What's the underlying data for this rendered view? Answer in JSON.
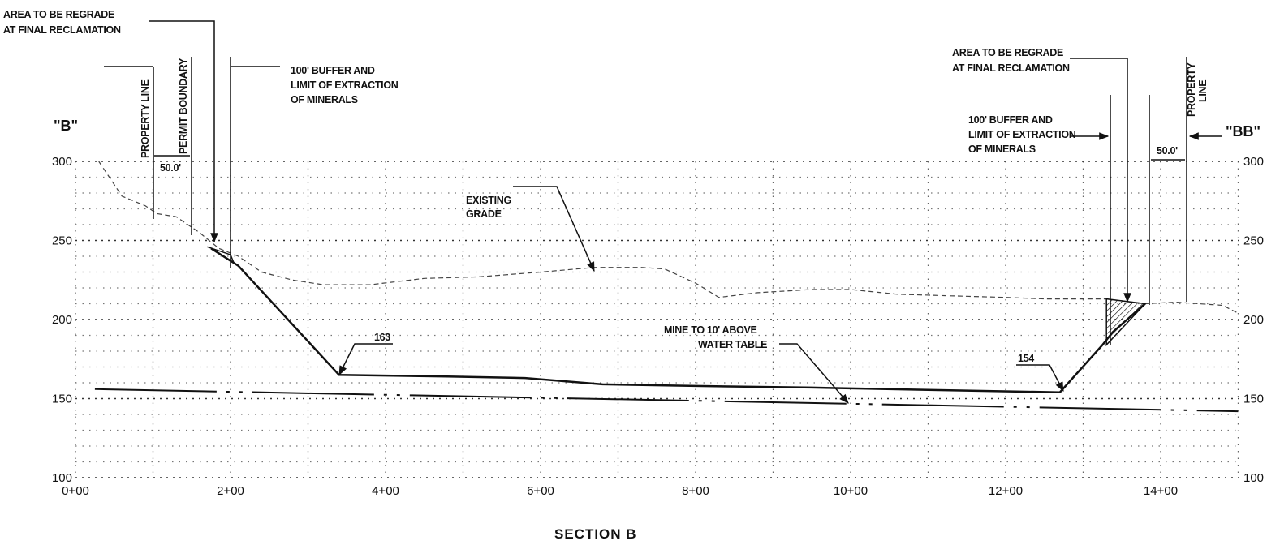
{
  "section_title": "SECTION B",
  "left_marker": "\"B\"",
  "right_marker": "\"BB\"",
  "y_axis": {
    "ticks": [
      "100",
      "150",
      "200",
      "250",
      "300"
    ],
    "values": [
      100,
      150,
      200,
      250,
      300
    ]
  },
  "x_axis": {
    "ticks": [
      "0+00",
      "2+00",
      "4+00",
      "6+00",
      "8+00",
      "10+00",
      "12+00",
      "14+00"
    ],
    "values": [
      0,
      2,
      4,
      6,
      8,
      10,
      12,
      14
    ]
  },
  "labels": {
    "left_regrade": [
      "AREA TO BE REGRADE",
      "AT FINAL RECLAMATION"
    ],
    "left_property_line": "PROPERTY LINE",
    "left_permit_boundary": "PERMIT BOUNDARY",
    "left_buffer": [
      "100' BUFFER AND",
      "LIMIT OF EXTRACTION",
      "OF MINERALS"
    ],
    "left_dimension": "50.0'",
    "existing_grade": [
      "EXISTING",
      "GRADE"
    ],
    "pit_floor_left": "163",
    "mine_note": [
      "MINE TO 10' ABOVE",
      "WATER TABLE"
    ],
    "pit_floor_right": "154",
    "right_regrade": [
      "AREA TO BE REGRADE",
      "AT FINAL RECLAMATION"
    ],
    "right_buffer": [
      "100' BUFFER AND",
      "LIMIT OF EXTRACTION",
      "OF MINERALS"
    ],
    "right_property_line": [
      "PROPERTY",
      "LINE"
    ],
    "right_dimension": "50.0'"
  },
  "profiles": {
    "existing_grade": [
      [
        0.3,
        300
      ],
      [
        0.6,
        278
      ],
      [
        0.9,
        272
      ],
      [
        1.05,
        267
      ],
      [
        1.3,
        265
      ],
      [
        1.6,
        255
      ],
      [
        1.85,
        245
      ],
      [
        2.1,
        240
      ],
      [
        2.4,
        230
      ],
      [
        2.8,
        225
      ],
      [
        3.2,
        222
      ],
      [
        3.8,
        222
      ],
      [
        4.5,
        226
      ],
      [
        5.2,
        227
      ],
      [
        6.0,
        230
      ],
      [
        6.7,
        233
      ],
      [
        7.3,
        233
      ],
      [
        7.6,
        232
      ],
      [
        8.0,
        223
      ],
      [
        8.3,
        214
      ],
      [
        8.8,
        217
      ],
      [
        9.5,
        219
      ],
      [
        10.0,
        219
      ],
      [
        10.6,
        216
      ],
      [
        11.3,
        215
      ],
      [
        12.0,
        214
      ],
      [
        12.5,
        213
      ],
      [
        13.3,
        213
      ],
      [
        13.8,
        210
      ],
      [
        14.2,
        211
      ],
      [
        14.8,
        209
      ],
      [
        15.0,
        204
      ]
    ],
    "mine_floor": [
      [
        1.75,
        245
      ],
      [
        2.1,
        234
      ],
      [
        3.4,
        165
      ],
      [
        4.8,
        164
      ],
      [
        5.8,
        163
      ],
      [
        6.8,
        159
      ],
      [
        8.0,
        158
      ],
      [
        9.5,
        157
      ],
      [
        11.0,
        155.5
      ],
      [
        12.7,
        154
      ],
      [
        13.25,
        184
      ],
      [
        13.38,
        192
      ],
      [
        13.8,
        210
      ]
    ],
    "water_table": [
      [
        0.25,
        156
      ],
      [
        15.0,
        142
      ]
    ],
    "regrade_right": [
      [
        13.3,
        184
      ],
      [
        13.3,
        213
      ],
      [
        13.8,
        210
      ]
    ],
    "regrade_left": [
      [
        1.7,
        246
      ],
      [
        2.0,
        241
      ],
      [
        2.05,
        235
      ]
    ]
  }
}
